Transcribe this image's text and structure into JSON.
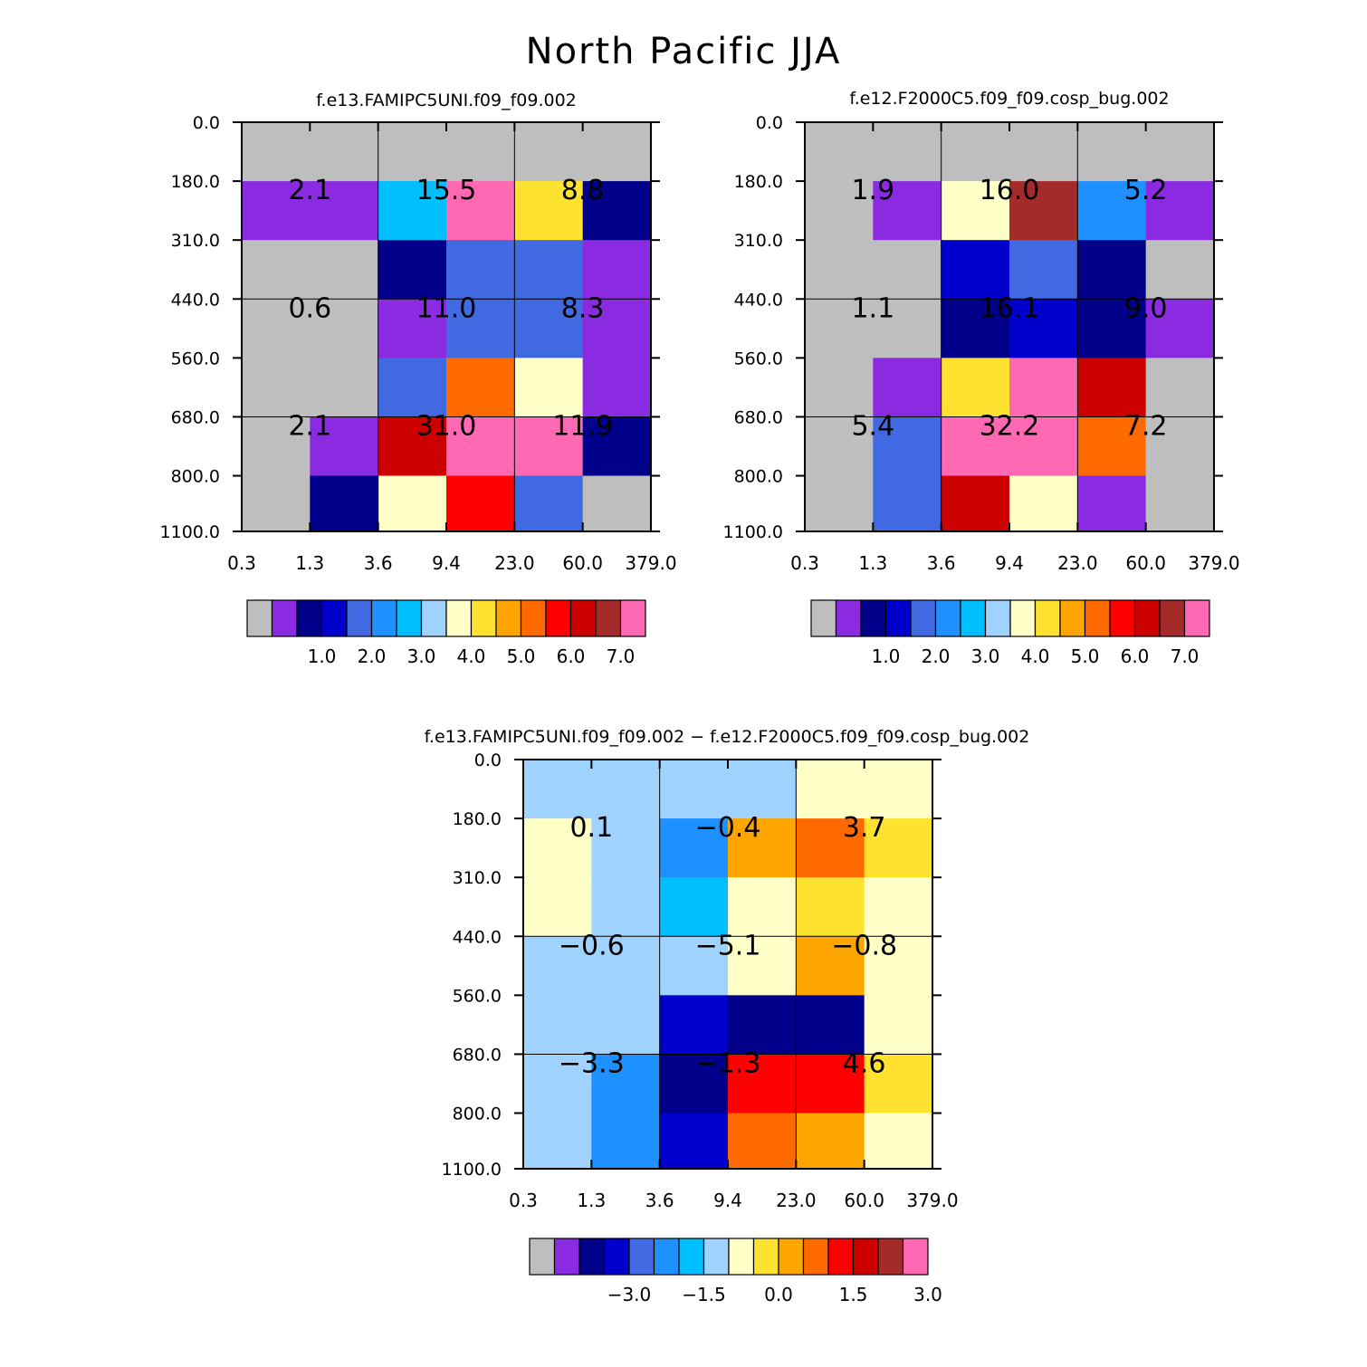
{
  "title": "North Pacific JJA",
  "palette": [
    "#bebebe",
    "#8a2be2",
    "#00008b",
    "#0000cd",
    "#4169e1",
    "#1e90ff",
    "#00bfff",
    "#a0d2ff",
    "#ffffc8",
    "#ffe130",
    "#ffa500",
    "#ff6a00",
    "#ff0000",
    "#cd0000",
    "#a52a2a",
    "#ff69b4"
  ],
  "chart_data": [
    {
      "type": "heatmap",
      "id": "p1",
      "title": "f.e13.FAMIPC5UNI.f09_f09.002",
      "x_ticks": [
        "0.3",
        "1.3",
        "3.6",
        "9.4",
        "23.0",
        "60.0",
        "379.0"
      ],
      "y_ticks": [
        "0.0",
        "180.0",
        "310.0",
        "440.0",
        "560.0",
        "680.0",
        "800.0",
        "1100.0"
      ],
      "cell_color_index": [
        [
          0,
          0,
          0,
          0,
          0,
          0
        ],
        [
          1,
          1,
          6,
          15,
          9,
          2
        ],
        [
          0,
          0,
          2,
          4,
          4,
          1
        ],
        [
          0,
          0,
          1,
          4,
          4,
          1
        ],
        [
          0,
          0,
          4,
          11,
          8,
          1
        ],
        [
          0,
          1,
          13,
          15,
          15,
          2
        ],
        [
          0,
          2,
          8,
          12,
          4,
          0
        ]
      ],
      "block_values": [
        [
          "2.1",
          "15.5",
          "8.8"
        ],
        [
          "0.6",
          "11.0",
          "8.3"
        ],
        [
          "2.1",
          "31.0",
          "11.9"
        ]
      ],
      "colorbar_labels": [
        "1.0",
        "2.0",
        "3.0",
        "4.0",
        "5.0",
        "6.0",
        "7.0"
      ]
    },
    {
      "type": "heatmap",
      "id": "p2",
      "title": "f.e12.F2000C5.f09_f09.cosp_bug.002",
      "x_ticks": [
        "0.3",
        "1.3",
        "3.6",
        "9.4",
        "23.0",
        "60.0",
        "379.0"
      ],
      "y_ticks": [
        "0.0",
        "180.0",
        "310.0",
        "440.0",
        "560.0",
        "680.0",
        "800.0",
        "1100.0"
      ],
      "cell_color_index": [
        [
          0,
          0,
          0,
          0,
          0,
          0
        ],
        [
          0,
          1,
          8,
          14,
          5,
          1
        ],
        [
          0,
          0,
          3,
          4,
          2,
          0
        ],
        [
          0,
          0,
          2,
          3,
          2,
          1
        ],
        [
          0,
          1,
          9,
          15,
          13,
          0
        ],
        [
          0,
          4,
          15,
          15,
          11,
          0
        ],
        [
          0,
          4,
          13,
          8,
          1,
          0
        ]
      ],
      "block_values": [
        [
          "1.9",
          "16.0",
          "5.2"
        ],
        [
          "1.1",
          "16.1",
          "9.0"
        ],
        [
          "5.4",
          "32.2",
          "7.2"
        ]
      ],
      "colorbar_labels": [
        "1.0",
        "2.0",
        "3.0",
        "4.0",
        "5.0",
        "6.0",
        "7.0"
      ]
    },
    {
      "type": "heatmap",
      "id": "p3",
      "title": "f.e13.FAMIPC5UNI.f09_f09.002 − f.e12.F2000C5.f09_f09.cosp_bug.002",
      "x_ticks": [
        "0.3",
        "1.3",
        "3.6",
        "9.4",
        "23.0",
        "60.0",
        "379.0"
      ],
      "y_ticks": [
        "0.0",
        "180.0",
        "310.0",
        "440.0",
        "560.0",
        "680.0",
        "800.0",
        "1100.0"
      ],
      "cell_color_index": [
        [
          7,
          7,
          7,
          7,
          8,
          8
        ],
        [
          8,
          7,
          5,
          10,
          11,
          9
        ],
        [
          8,
          7,
          6,
          8,
          9,
          8
        ],
        [
          7,
          7,
          7,
          8,
          10,
          8
        ],
        [
          7,
          7,
          3,
          2,
          2,
          8
        ],
        [
          7,
          5,
          2,
          12,
          12,
          9
        ],
        [
          7,
          5,
          3,
          11,
          10,
          8
        ]
      ],
      "block_values": [
        [
          "0.1",
          "−0.4",
          "3.7"
        ],
        [
          "−0.6",
          "−5.1",
          "−0.8"
        ],
        [
          "−3.3",
          "−1.3",
          "4.6"
        ]
      ],
      "colorbar_labels": [
        "−3.0",
        "−1.5",
        "0.0",
        "1.5",
        "3.0"
      ]
    }
  ]
}
